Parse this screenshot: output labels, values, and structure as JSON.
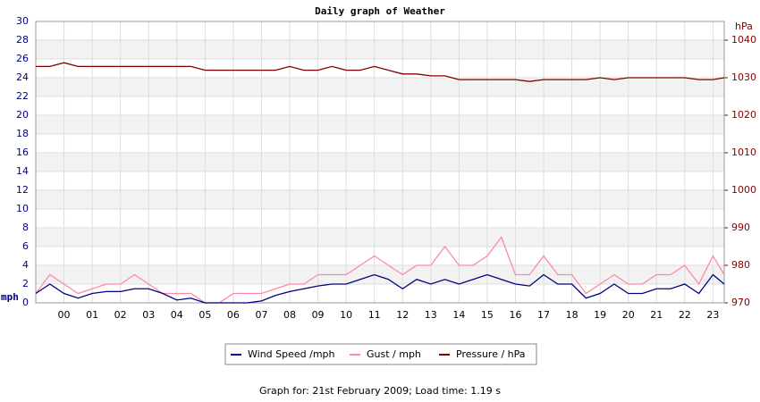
{
  "chart_data": {
    "type": "line",
    "title": "Daily graph of Weather",
    "ylabel": "mph",
    "y2label": "hPa",
    "footer": "Graph for: 21st February 2009; Load time: 1.19 s",
    "x": [
      -1,
      -0.5,
      0,
      0.5,
      1,
      1.5,
      2,
      2.5,
      3,
      3.5,
      4,
      4.5,
      5,
      5.5,
      6,
      6.5,
      7,
      7.5,
      8,
      8.5,
      9,
      9.5,
      10,
      10.5,
      11,
      11.5,
      12,
      12.5,
      13,
      13.5,
      14,
      14.5,
      15,
      15.5,
      16,
      16.5,
      17,
      17.5,
      18,
      18.5,
      19,
      19.5,
      20,
      20.5,
      21,
      21.5,
      22,
      22.5,
      23,
      23.4
    ],
    "xlim": [
      -1,
      23.4
    ],
    "xticks": [
      {
        "value": 0,
        "label": "00"
      },
      {
        "value": 1,
        "label": "01"
      },
      {
        "value": 2,
        "label": "02"
      },
      {
        "value": 3,
        "label": "03"
      },
      {
        "value": 4,
        "label": "04"
      },
      {
        "value": 5,
        "label": "05"
      },
      {
        "value": 6,
        "label": "06"
      },
      {
        "value": 7,
        "label": "07"
      },
      {
        "value": 8,
        "label": "08"
      },
      {
        "value": 9,
        "label": "09"
      },
      10,
      11,
      12,
      13,
      14,
      15,
      16,
      17,
      18,
      19,
      20,
      21,
      22,
      23
    ],
    "ylim": [
      0,
      30
    ],
    "yticks": [
      0,
      2,
      4,
      6,
      8,
      10,
      12,
      14,
      16,
      18,
      20,
      22,
      24,
      26,
      28,
      30
    ],
    "y2lim": [
      970,
      1045
    ],
    "y2ticks": [
      970,
      980,
      990,
      1000,
      1010,
      1020,
      1030,
      1040
    ],
    "grid": true,
    "series": [
      {
        "name": "Wind Speed /mph",
        "color": "#000080",
        "values": [
          1,
          2,
          1,
          0.5,
          1,
          1.2,
          1.2,
          1.5,
          1.5,
          1,
          0.3,
          0.5,
          0,
          0,
          0,
          0,
          0.2,
          0.8,
          1.2,
          1.5,
          1.8,
          2,
          2,
          2.5,
          3,
          2.5,
          1.5,
          2.5,
          2,
          2.5,
          2,
          2.5,
          3,
          2.5,
          2,
          1.8,
          3,
          2,
          2,
          0.5,
          1,
          2,
          1,
          1,
          1.5,
          1.5,
          2,
          1,
          3,
          2
        ]
      },
      {
        "name": "Gust / mph",
        "color": "#ff88aa",
        "values": [
          1,
          3,
          2,
          1,
          1.5,
          2,
          2,
          3,
          2,
          1,
          1,
          1,
          0,
          0,
          1,
          1,
          1,
          1.5,
          2,
          2,
          3,
          3,
          3,
          4,
          5,
          4,
          3,
          4,
          4,
          6,
          4,
          4,
          5,
          7,
          3,
          3,
          5,
          3,
          3,
          1,
          2,
          3,
          2,
          2,
          3,
          3,
          4,
          2,
          5,
          3
        ]
      },
      {
        "name": "Pressure / hPa",
        "color": "#800000",
        "axis": "y2",
        "values": [
          1033,
          1033,
          1034,
          1033,
          1033,
          1033,
          1033,
          1033,
          1033,
          1033,
          1033,
          1033,
          1032,
          1032,
          1032,
          1032,
          1032,
          1032,
          1033,
          1032,
          1032,
          1033,
          1032,
          1032,
          1033,
          1032,
          1031,
          1031,
          1030.5,
          1030.5,
          1029.5,
          1029.5,
          1029.5,
          1029.5,
          1029.5,
          1029,
          1029.5,
          1029.5,
          1029.5,
          1029.5,
          1030,
          1029.5,
          1030,
          1030,
          1030,
          1030,
          1030,
          1029.5,
          1029.5,
          1030
        ]
      }
    ]
  }
}
